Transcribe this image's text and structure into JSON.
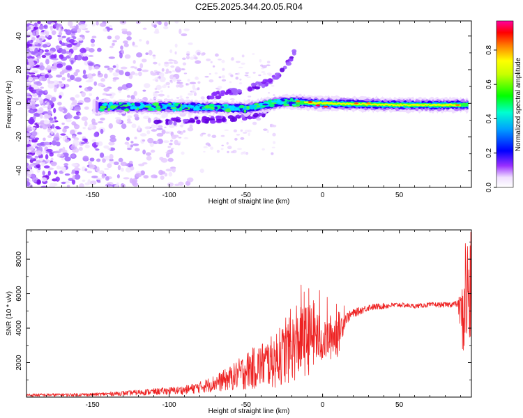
{
  "title": "C2E5.2025.344.20.05.R04",
  "chart_data": [
    {
      "type": "heatmap",
      "xlabel": "Height of straight line (km)",
      "ylabel": "Frequency (Hz)",
      "xlim": [
        -193,
        97
      ],
      "ylim": [
        -50,
        49
      ],
      "xticks": [
        -150,
        -100,
        -50,
        0,
        50
      ],
      "yticks": [
        -40,
        -20,
        0,
        20,
        40
      ],
      "colorbar": {
        "label": "Normalized spectral amplitude",
        "range": [
          0.0,
          0.97
        ],
        "ticks": [
          0.0,
          0.2,
          0.4,
          0.6,
          0.8
        ],
        "colormap": [
          "#ffffff",
          "#8000ff",
          "#0000ff",
          "#00e5ff",
          "#00ff00",
          "#ffff00",
          "#ff8000",
          "#ff0000",
          "#ff00a0"
        ]
      },
      "features": [
        {
          "name": "main ridge",
          "x": [
            -145,
            -100,
            -50,
            -25,
            0,
            50,
            95
          ],
          "y": [
            -2,
            -2,
            -3,
            1,
            0,
            -1,
            -1
          ]
        },
        {
          "name": "upper branch",
          "x": [
            -75,
            -50,
            -35,
            -25,
            -18
          ],
          "y": [
            4,
            8,
            13,
            20,
            32
          ]
        },
        {
          "name": "lower branch",
          "x": [
            -110,
            -80,
            -60,
            -45,
            -35
          ],
          "y": [
            -11,
            -10,
            -9,
            -7,
            -5
          ]
        }
      ]
    },
    {
      "type": "line",
      "xlabel": "Height of straight line (km)",
      "ylabel": "SNR (10 * v/v)",
      "xlim": [
        -193,
        97
      ],
      "ylim": [
        0,
        9700
      ],
      "xticks": [
        -150,
        -100,
        -50,
        0,
        50
      ],
      "yticks": [
        2000,
        4000,
        6000,
        8000
      ],
      "series": [
        {
          "color": "#ee2222",
          "envelope": {
            "x": [
              -193,
              -150,
              -130,
              -110,
              -90,
              -80,
              -70,
              -60,
              -50,
              -40,
              -30,
              -20,
              -15,
              -10,
              -5,
              0,
              5,
              10,
              15,
              20,
              30,
              40,
              50,
              60,
              70,
              80,
              88,
              92,
              93,
              95,
              97
            ],
            "low": [
              20,
              50,
              80,
              120,
              150,
              220,
              300,
              350,
              400,
              450,
              500,
              800,
              1000,
              1200,
              1500,
              2000,
              2100,
              2300,
              4200,
              4600,
              5000,
              5100,
              5200,
              5150,
              5200,
              5200,
              5200,
              2000,
              2000,
              2000,
              2000
            ],
            "high": [
              200,
              240,
              350,
              500,
              650,
              900,
              1300,
              1800,
              2600,
              3200,
              3700,
              4800,
              5200,
              5400,
              5500,
              4200,
              4800,
              5000,
              4900,
              5100,
              5400,
              5450,
              5500,
              5400,
              5500,
              5500,
              5600,
              6700,
              9700,
              9500,
              9600
            ]
          },
          "spikes": [
            {
              "x": -28,
              "y": 4000
            },
            {
              "x": -24,
              "y": 4600
            },
            {
              "x": -21,
              "y": 5100
            },
            {
              "x": -17,
              "y": 5300
            },
            {
              "x": -14,
              "y": 6500
            },
            {
              "x": -12,
              "y": 6100
            },
            {
              "x": -9,
              "y": 6300
            },
            {
              "x": -6,
              "y": 5600
            },
            {
              "x": -2,
              "y": 6200
            },
            {
              "x": 3,
              "y": 5800
            },
            {
              "x": 9,
              "y": 5400
            },
            {
              "x": 14,
              "y": 5300
            }
          ]
        }
      ]
    }
  ]
}
